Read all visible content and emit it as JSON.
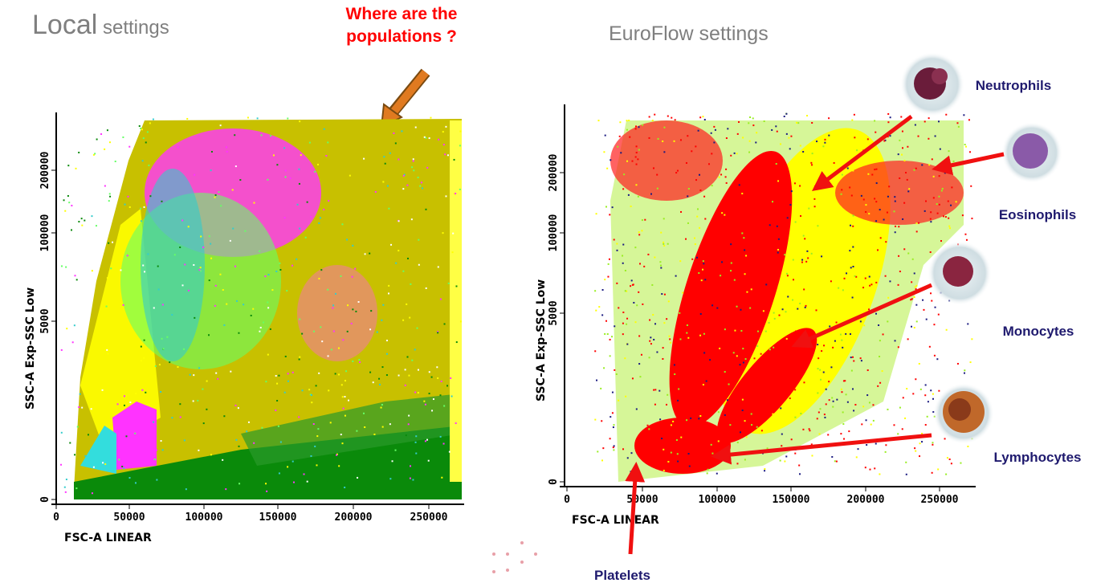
{
  "left_panel": {
    "title_main": "Local",
    "title_rest": "settings",
    "annotation": "Where are the populations ?",
    "y_label": "SSC-A Exp-SSC Low",
    "x_label": "FSC-A LINEAR",
    "xticks": [
      "0",
      "50000",
      "100000",
      "150000",
      "200000",
      "250000"
    ],
    "yticks": [
      "0",
      "5000",
      "100000",
      "200000"
    ]
  },
  "right_panel": {
    "title": "EuroFlow settings",
    "y_label": "SSC-A Exp-SSC Low",
    "x_label": "FSC-A LINEAR",
    "xticks": [
      "0",
      "50000",
      "100000",
      "150000",
      "200000",
      "250000"
    ],
    "yticks": [
      "0",
      "5000",
      "100000",
      "200000"
    ],
    "cells": [
      "Neutrophils",
      "Eosinophils",
      "Monocytes",
      "Lymphocytes",
      "Platelets"
    ]
  }
}
